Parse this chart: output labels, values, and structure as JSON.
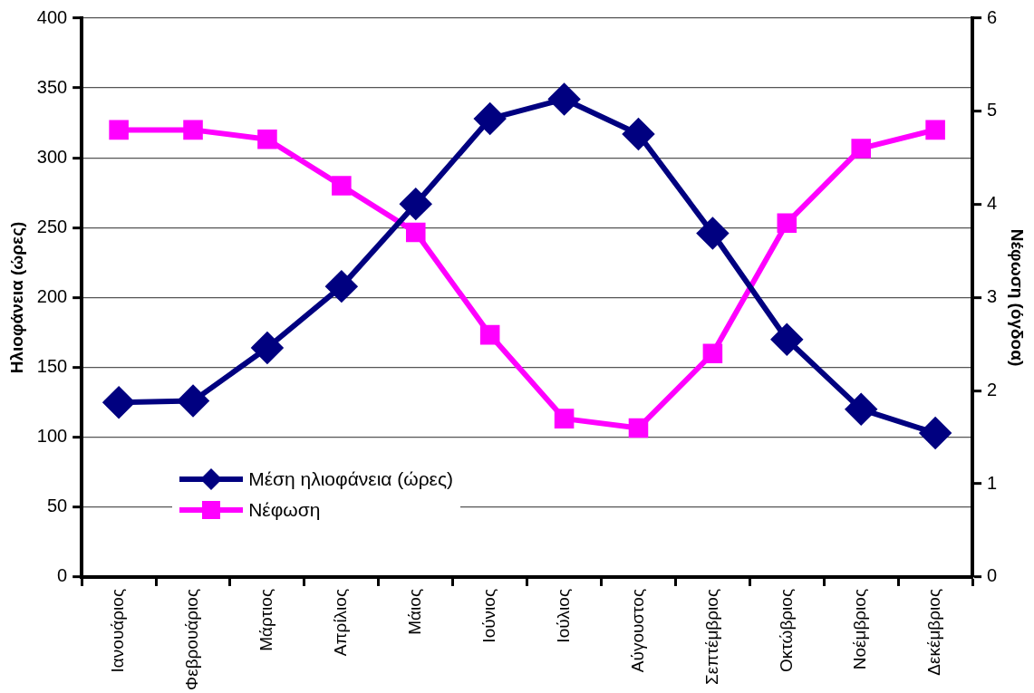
{
  "chart_data": {
    "type": "line",
    "ylabel": "Ηλιοφάνεια (ώρες)",
    "y2label": "Νέφωση (όγδοα)",
    "categories": [
      "Ιανουάριος",
      "Φεβρουάριος",
      "Μάρτιος",
      "Απρίλιος",
      "Μάιος",
      "Ιούνιος",
      "Ιούλιος",
      "Αύγουστος",
      "Σεπτέμβριος",
      "Οκτώβριος",
      "Νοέμβριος",
      "Δεκέμβριος"
    ],
    "series": [
      {
        "name": "Μέση ηλιοφάνεια (ώρες)",
        "color": "#000080",
        "marker": "diamond",
        "values": [
          125,
          126,
          164,
          208,
          267,
          328,
          342,
          317,
          246,
          170,
          120,
          103
        ]
      },
      {
        "name": "Νέφωση",
        "color": "#ff00ff",
        "marker": "square",
        "axis": "y2",
        "values": [
          4.8,
          4.8,
          4.7,
          4.2,
          3.7,
          2.6,
          1.7,
          1.6,
          2.4,
          3.8,
          4.6,
          4.8
        ]
      }
    ],
    "ylim": [
      0,
      400
    ],
    "yticks": [
      0,
      50,
      100,
      150,
      200,
      250,
      300,
      350,
      400
    ],
    "y2lim": [
      0,
      6
    ],
    "y2ticks": [
      0,
      1,
      2,
      3,
      4,
      5,
      6
    ],
    "grid": "y",
    "legend": "bottom left",
    "line_style": "solid"
  }
}
